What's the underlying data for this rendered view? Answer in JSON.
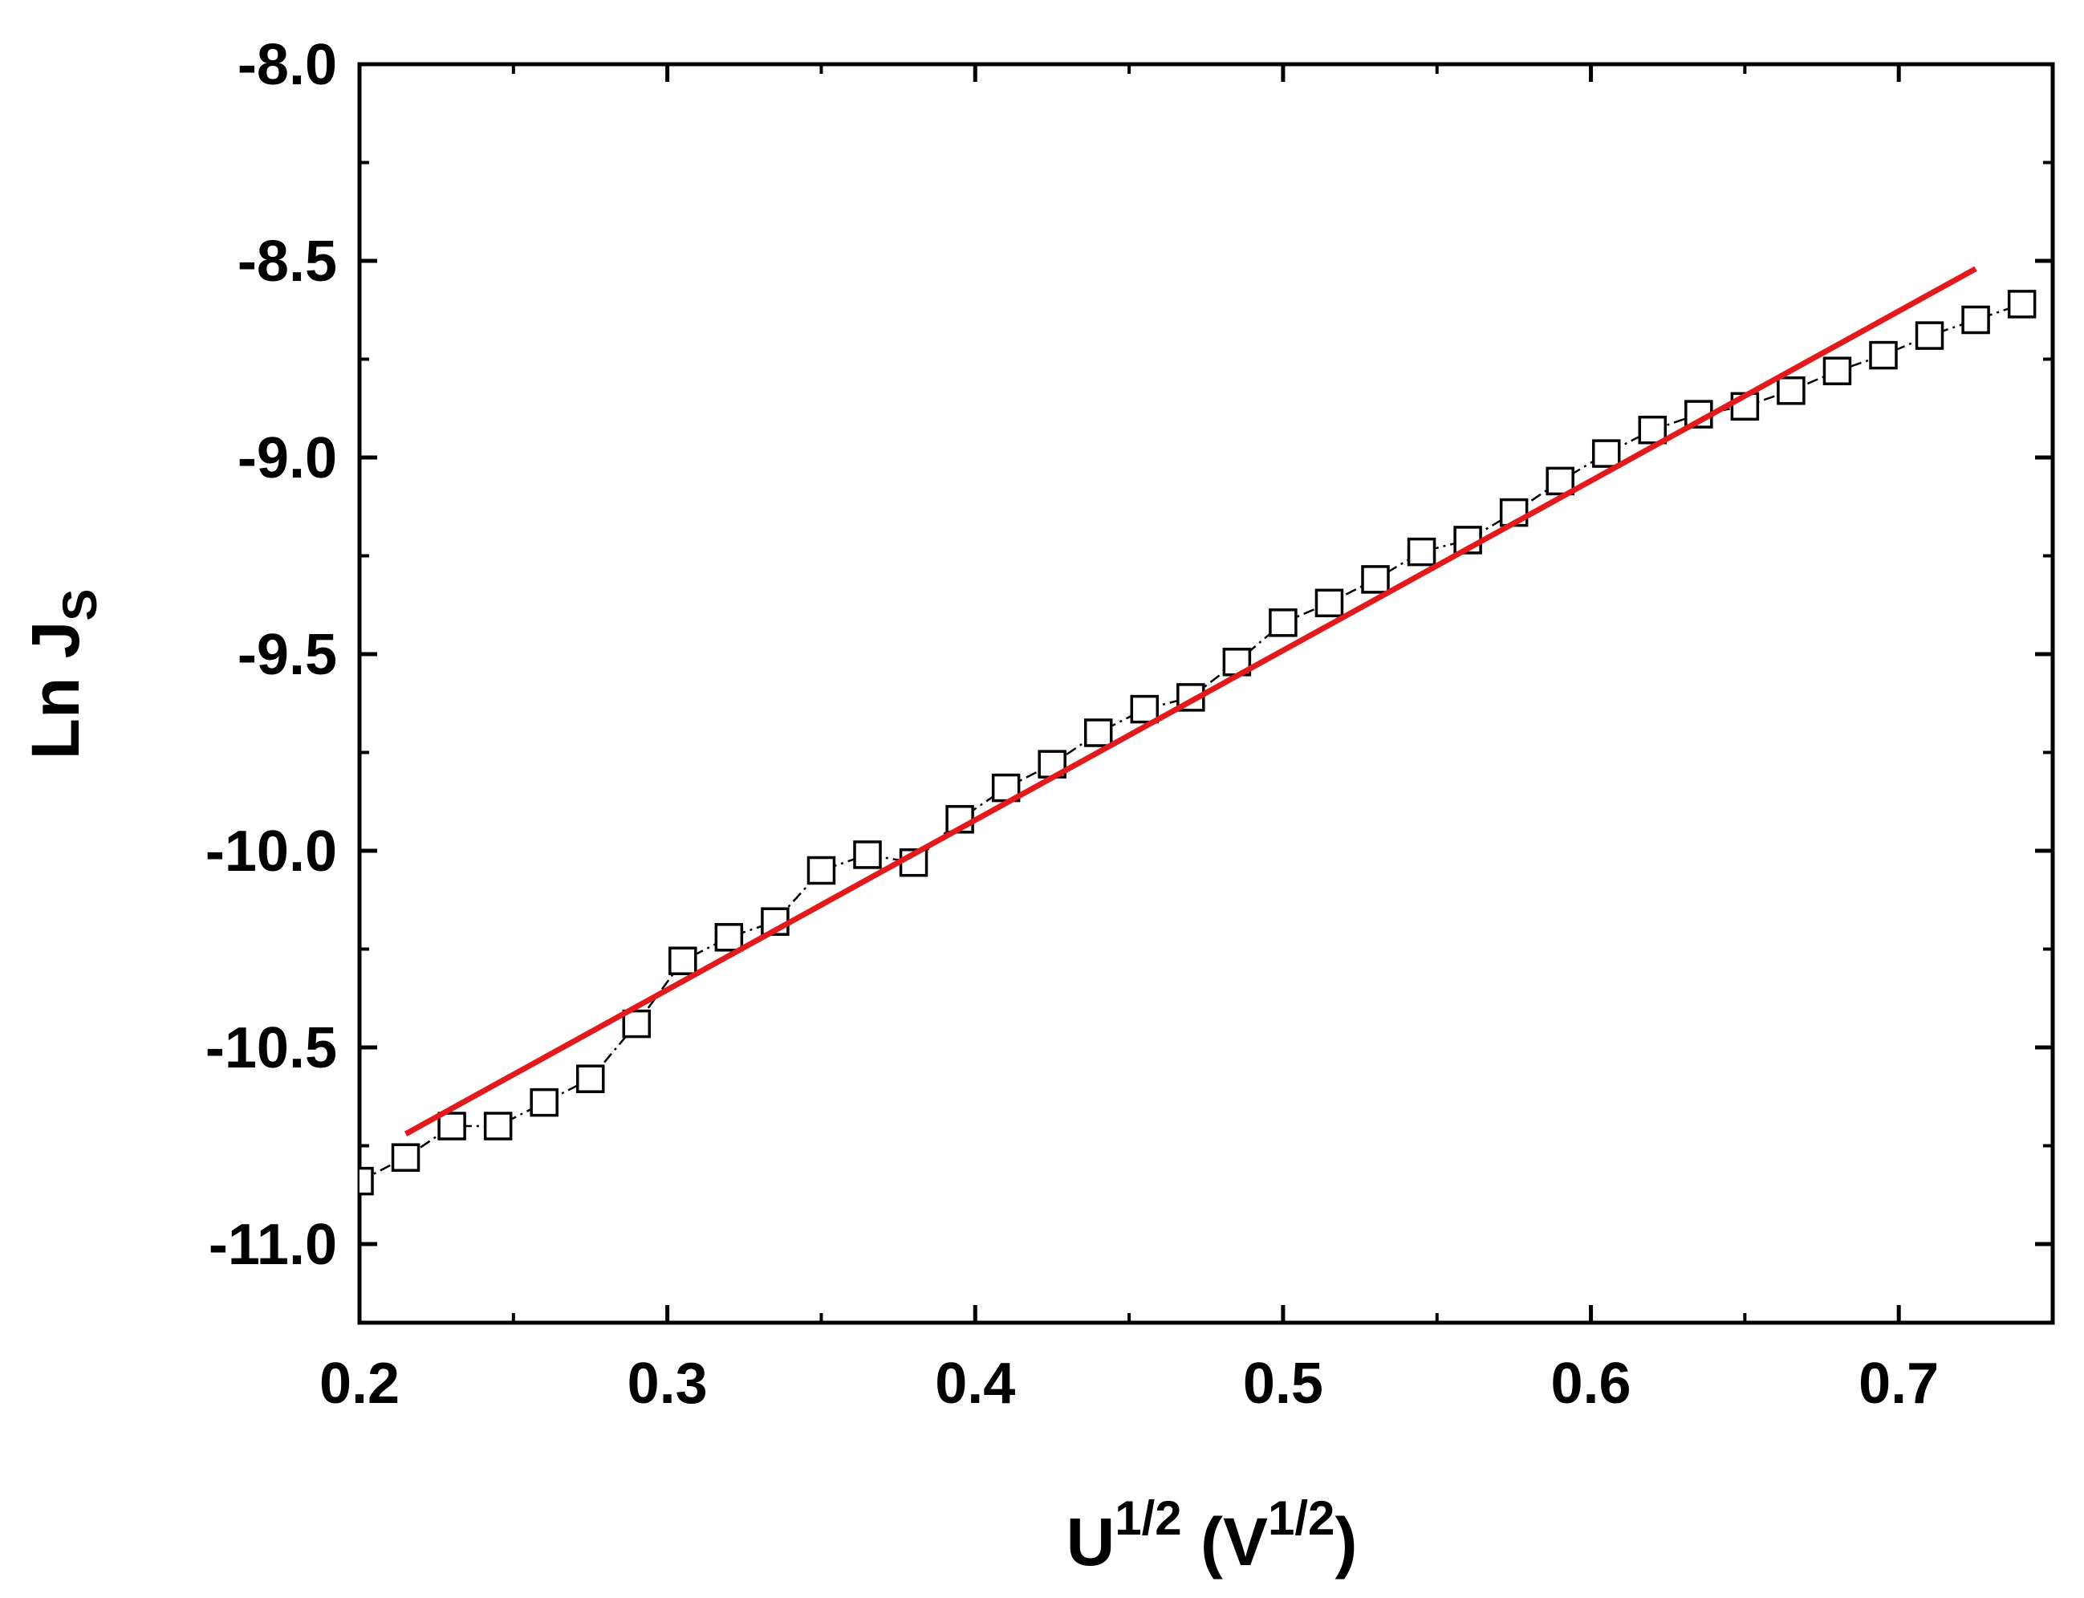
{
  "chart_data": {
    "type": "scatter",
    "title": "",
    "xlabel": {
      "main": "U",
      "main_sup": "1/2",
      "unit_open": " (V",
      "unit_sup": "1/2",
      "unit_close": ")"
    },
    "ylabel": {
      "main": "Ln J",
      "sub": "S"
    },
    "xlim": [
      0.2,
      0.75
    ],
    "ylim": [
      -11.2,
      -8.0
    ],
    "x_ticks": [
      0.2,
      0.3,
      0.4,
      0.5,
      0.6,
      0.7
    ],
    "x_tick_labels": [
      "0.2",
      "0.3",
      "0.4",
      "0.5",
      "0.6",
      "0.7"
    ],
    "y_ticks": [
      -8.0,
      -8.5,
      -9.0,
      -9.5,
      -10.0,
      -10.5,
      -11.0
    ],
    "y_tick_labels": [
      "-8.0",
      "-8.5",
      "-9.0",
      "-9.5",
      "-10.0",
      "-10.5",
      "-11.0"
    ],
    "y_minor_ticks": [
      -8.25,
      -8.75,
      -9.25,
      -9.75,
      -10.25,
      -10.75
    ],
    "grid": false,
    "legend": "none",
    "series": [
      {
        "kind": "scatter-line",
        "marker": "open-square",
        "line_style": "dash-dot",
        "color": "#000000",
        "x": [
          0.2,
          0.215,
          0.23,
          0.245,
          0.26,
          0.275,
          0.29,
          0.305,
          0.32,
          0.335,
          0.35,
          0.365,
          0.38,
          0.395,
          0.41,
          0.425,
          0.44,
          0.455,
          0.47,
          0.485,
          0.5,
          0.515,
          0.53,
          0.545,
          0.56,
          0.575,
          0.59,
          0.605,
          0.62,
          0.635,
          0.65,
          0.665,
          0.68,
          0.695,
          0.71,
          0.725,
          0.74
        ],
        "y": [
          -10.84,
          -10.78,
          -10.7,
          -10.7,
          -10.64,
          -10.58,
          -10.44,
          -10.28,
          -10.22,
          -10.18,
          -10.05,
          -10.01,
          -10.03,
          -9.92,
          -9.84,
          -9.78,
          -9.7,
          -9.64,
          -9.61,
          -9.52,
          -9.42,
          -9.37,
          -9.31,
          -9.24,
          -9.21,
          -9.14,
          -9.06,
          -8.99,
          -8.93,
          -8.89,
          -8.87,
          -8.83,
          -8.78,
          -8.74,
          -8.69,
          -8.65,
          -8.61
        ]
      },
      {
        "kind": "fit-line",
        "color": "#e31a1c",
        "x": [
          0.215,
          0.725
        ],
        "y": [
          -10.72,
          -8.52
        ]
      }
    ]
  }
}
